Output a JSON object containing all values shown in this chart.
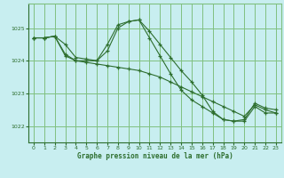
{
  "background_color": "#c8eef0",
  "grid_color": "#80c080",
  "line_color": "#2d6e2d",
  "title": "Graphe pression niveau de la mer (hPa)",
  "xlim": [
    -0.5,
    23.5
  ],
  "ylim": [
    1021.5,
    1025.75
  ],
  "yticks": [
    1022,
    1023,
    1024,
    1025
  ],
  "xticks": [
    0,
    1,
    2,
    3,
    4,
    5,
    6,
    7,
    8,
    9,
    10,
    11,
    12,
    13,
    14,
    15,
    16,
    17,
    18,
    19,
    20,
    21,
    22,
    23
  ],
  "series": [
    [
      1024.7,
      1024.7,
      1024.75,
      1024.5,
      1024.1,
      1024.05,
      1024.0,
      1024.5,
      1025.1,
      1025.2,
      1025.25,
      1024.9,
      1024.5,
      1024.1,
      1023.7,
      1023.35,
      1022.95,
      1022.45,
      1022.2,
      1022.15,
      1022.2,
      1022.7,
      1022.55,
      1022.5
    ],
    [
      1024.7,
      1024.7,
      1024.75,
      1024.2,
      1024.0,
      1024.0,
      1024.0,
      1024.3,
      1025.0,
      1025.2,
      1025.25,
      1024.7,
      1024.15,
      1023.6,
      1023.1,
      1022.8,
      1022.6,
      1022.4,
      1022.2,
      1022.15,
      1022.15,
      1022.6,
      1022.4,
      1022.4
    ],
    [
      1024.7,
      1024.7,
      1024.75,
      1024.15,
      1024.0,
      1023.95,
      1023.9,
      1023.85,
      1023.8,
      1023.75,
      1023.7,
      1023.6,
      1023.5,
      1023.35,
      1023.2,
      1023.05,
      1022.9,
      1022.75,
      1022.6,
      1022.45,
      1022.3,
      1022.65,
      1022.5,
      1022.4
    ]
  ]
}
